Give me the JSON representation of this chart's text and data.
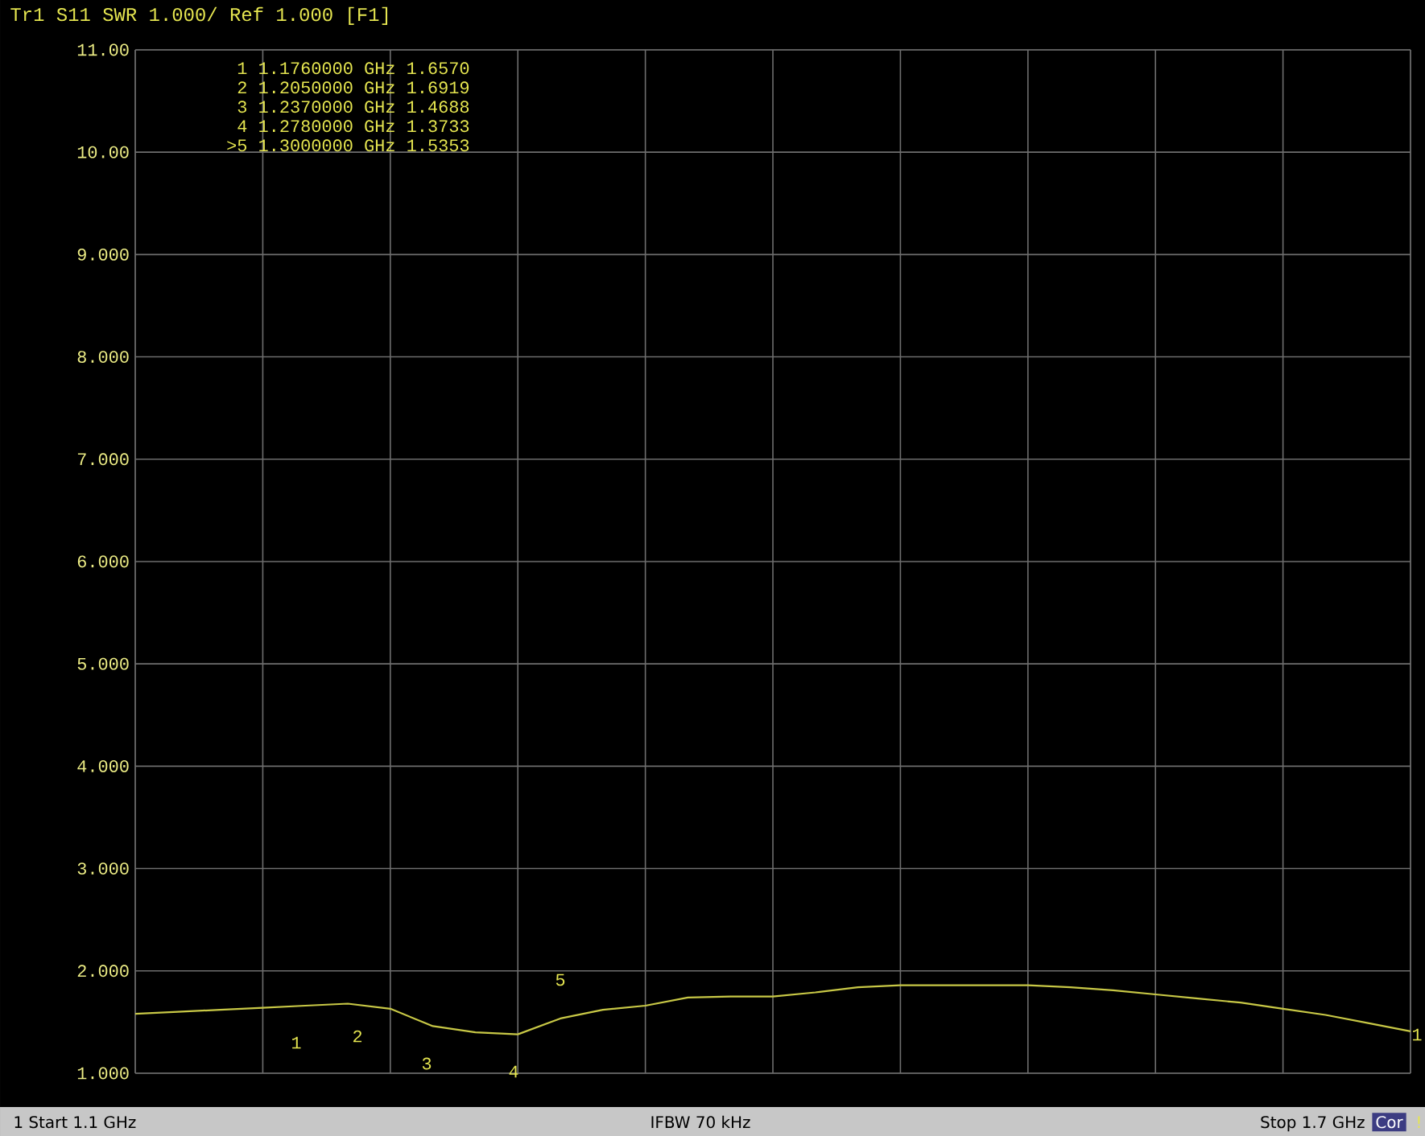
{
  "chart_data": {
    "type": "line",
    "title": "Tr1 S11 SWR 1.000/ Ref 1.000 [F1]",
    "categories": [
      null,
      null,
      null,
      null,
      null,
      null,
      null,
      null,
      null,
      null,
      null,
      null,
      null,
      null,
      null,
      null,
      null,
      null,
      null,
      null,
      null,
      null,
      null,
      null,
      null,
      null,
      null,
      null,
      null,
      null,
      null
    ],
    "series": [
      {
        "color": "#c8c846",
        "values": [
          1.58,
          1.6,
          1.62,
          1.64,
          1.66,
          1.68,
          1.63,
          1.46,
          1.4,
          1.38,
          1.535,
          1.62,
          1.66,
          1.74,
          1.75,
          1.75,
          1.79,
          1.84,
          1.86,
          1.86,
          1.86,
          1.86,
          1.84,
          1.81,
          1.77,
          1.73,
          1.69,
          1.63,
          1.57,
          1.49,
          1.41
        ]
      }
    ],
    "ylim": [
      1,
      11
    ],
    "yticks": [
      {
        "value": 1,
        "label": "1.000"
      },
      {
        "value": 2,
        "label": "2.000"
      },
      {
        "value": 3,
        "label": "3.000"
      },
      {
        "value": 4,
        "label": "4.000"
      },
      {
        "value": 5,
        "label": "5.000"
      },
      {
        "value": 6,
        "label": "6.000"
      },
      {
        "value": 7,
        "label": "7.000"
      },
      {
        "value": 8,
        "label": "8.000"
      },
      {
        "value": 9,
        "label": "9.000"
      },
      {
        "value": 10,
        "label": "10.00"
      },
      {
        "value": 11,
        "label": "11.00"
      }
    ],
    "tick_labels": "y",
    "grid": true,
    "annotations": [
      "1 1.1760000 GHz 1.6570",
      "2 1.2050000 GHz 1.6919",
      "3 1.2370000 GHz 1.4688",
      "4 1.2780000 GHz 1.3733",
      ">5 1.3000000 GHz 1.5353",
      "1 Start 1.1 GHz",
      "IFBW 70 kHz",
      "Stop 1.7 GHz",
      "Cor",
      "!",
      "1",
      "2",
      "3",
      "4",
      "5",
      "1"
    ]
  }
}
